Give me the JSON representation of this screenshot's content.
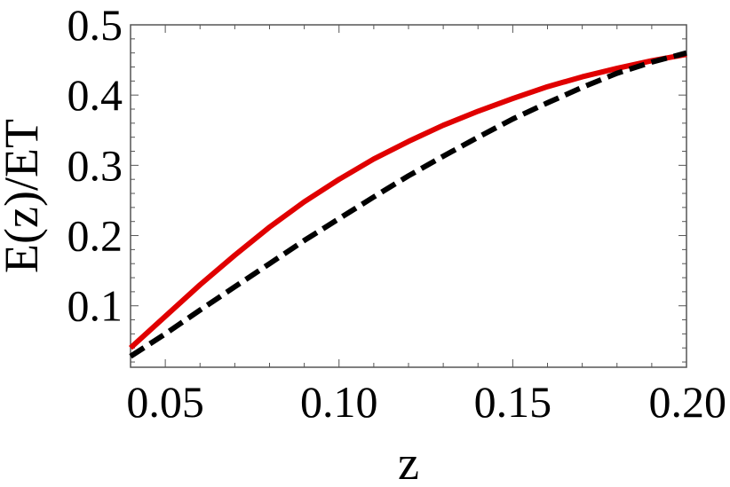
{
  "chart_data": {
    "type": "line",
    "title": "",
    "xlabel": "z",
    "ylabel": "E(z)/ET",
    "xlim": [
      0.04,
      0.2
    ],
    "ylim": [
      0.0125,
      0.5
    ],
    "grid": false,
    "legend": "none",
    "xticks": [
      {
        "value": 0.05,
        "label": "0.05"
      },
      {
        "value": 0.1,
        "label": "0.10"
      },
      {
        "value": 0.15,
        "label": "0.15"
      },
      {
        "value": 0.2,
        "label": "0.20"
      }
    ],
    "yticks": [
      {
        "value": 0.1,
        "label": "0.1"
      },
      {
        "value": 0.2,
        "label": "0.2"
      },
      {
        "value": 0.3,
        "label": "0.3"
      },
      {
        "value": 0.4,
        "label": "0.4"
      },
      {
        "value": 0.5,
        "label": "0.5"
      }
    ],
    "series": [
      {
        "color": "#e00000",
        "style": "solid",
        "x": [
          0.04,
          0.05,
          0.06,
          0.07,
          0.08,
          0.09,
          0.1,
          0.11,
          0.12,
          0.13,
          0.14,
          0.15,
          0.16,
          0.17,
          0.18,
          0.19,
          0.2
        ],
        "values": [
          0.04,
          0.085,
          0.13,
          0.172,
          0.212,
          0.248,
          0.28,
          0.309,
          0.334,
          0.357,
          0.377,
          0.395,
          0.412,
          0.426,
          0.438,
          0.449,
          0.458
        ]
      },
      {
        "color": "#000000",
        "style": "dashed",
        "x": [
          0.04,
          0.05,
          0.06,
          0.07,
          0.08,
          0.09,
          0.1,
          0.11,
          0.12,
          0.13,
          0.14,
          0.15,
          0.16,
          0.17,
          0.18,
          0.19,
          0.2
        ],
        "values": [
          0.028,
          0.06,
          0.094,
          0.127,
          0.16,
          0.193,
          0.224,
          0.255,
          0.285,
          0.313,
          0.34,
          0.366,
          0.389,
          0.411,
          0.431,
          0.447,
          0.46
        ]
      }
    ]
  }
}
